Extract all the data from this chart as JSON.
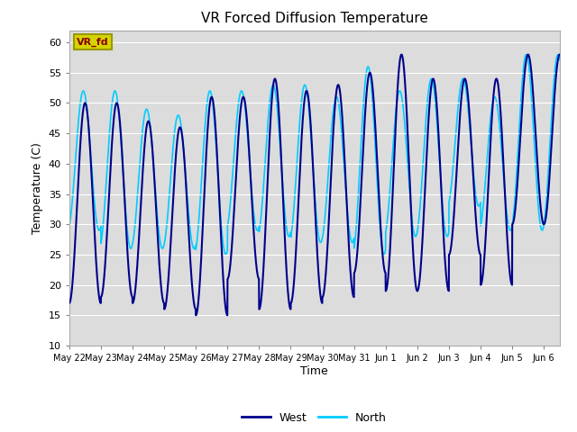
{
  "title": "VR Forced Diffusion Temperature",
  "ylabel": "Temperature (C)",
  "xlabel": "Time",
  "ylim": [
    10,
    62
  ],
  "yticks": [
    10,
    15,
    20,
    25,
    30,
    35,
    40,
    45,
    50,
    55,
    60
  ],
  "plot_bg_color": "#dcdcdc",
  "fig_bg_color": "#ffffff",
  "west_color": "#00008B",
  "north_color": "#00CCFF",
  "annotation_text": "VR_fd",
  "annotation_bg": "#d4d400",
  "annotation_fg": "#8B0000",
  "annotation_edge": "#999900",
  "x_tick_labels": [
    "May 22",
    "May 23",
    "May 24",
    "May 25",
    "May 26",
    "May 27",
    "May 28",
    "May 29",
    "May 30",
    "May 31",
    "Jun 1",
    "Jun 2",
    "Jun 3",
    "Jun 4",
    "Jun 5",
    "Jun 6"
  ],
  "west_min": [
    17,
    18,
    17,
    16,
    15,
    21,
    16,
    17,
    18,
    22,
    19,
    19,
    25,
    20,
    30
  ],
  "west_max": [
    50,
    50,
    47,
    46,
    51,
    51,
    54,
    52,
    53,
    55,
    58,
    54,
    54,
    54,
    58
  ],
  "north_min": [
    29,
    26,
    26,
    26,
    25,
    29,
    28,
    27,
    27,
    25,
    28,
    28,
    33,
    29,
    29
  ],
  "north_max": [
    52,
    52,
    49,
    48,
    52,
    52,
    53,
    53,
    51,
    56,
    52,
    54,
    54,
    51,
    58
  ]
}
